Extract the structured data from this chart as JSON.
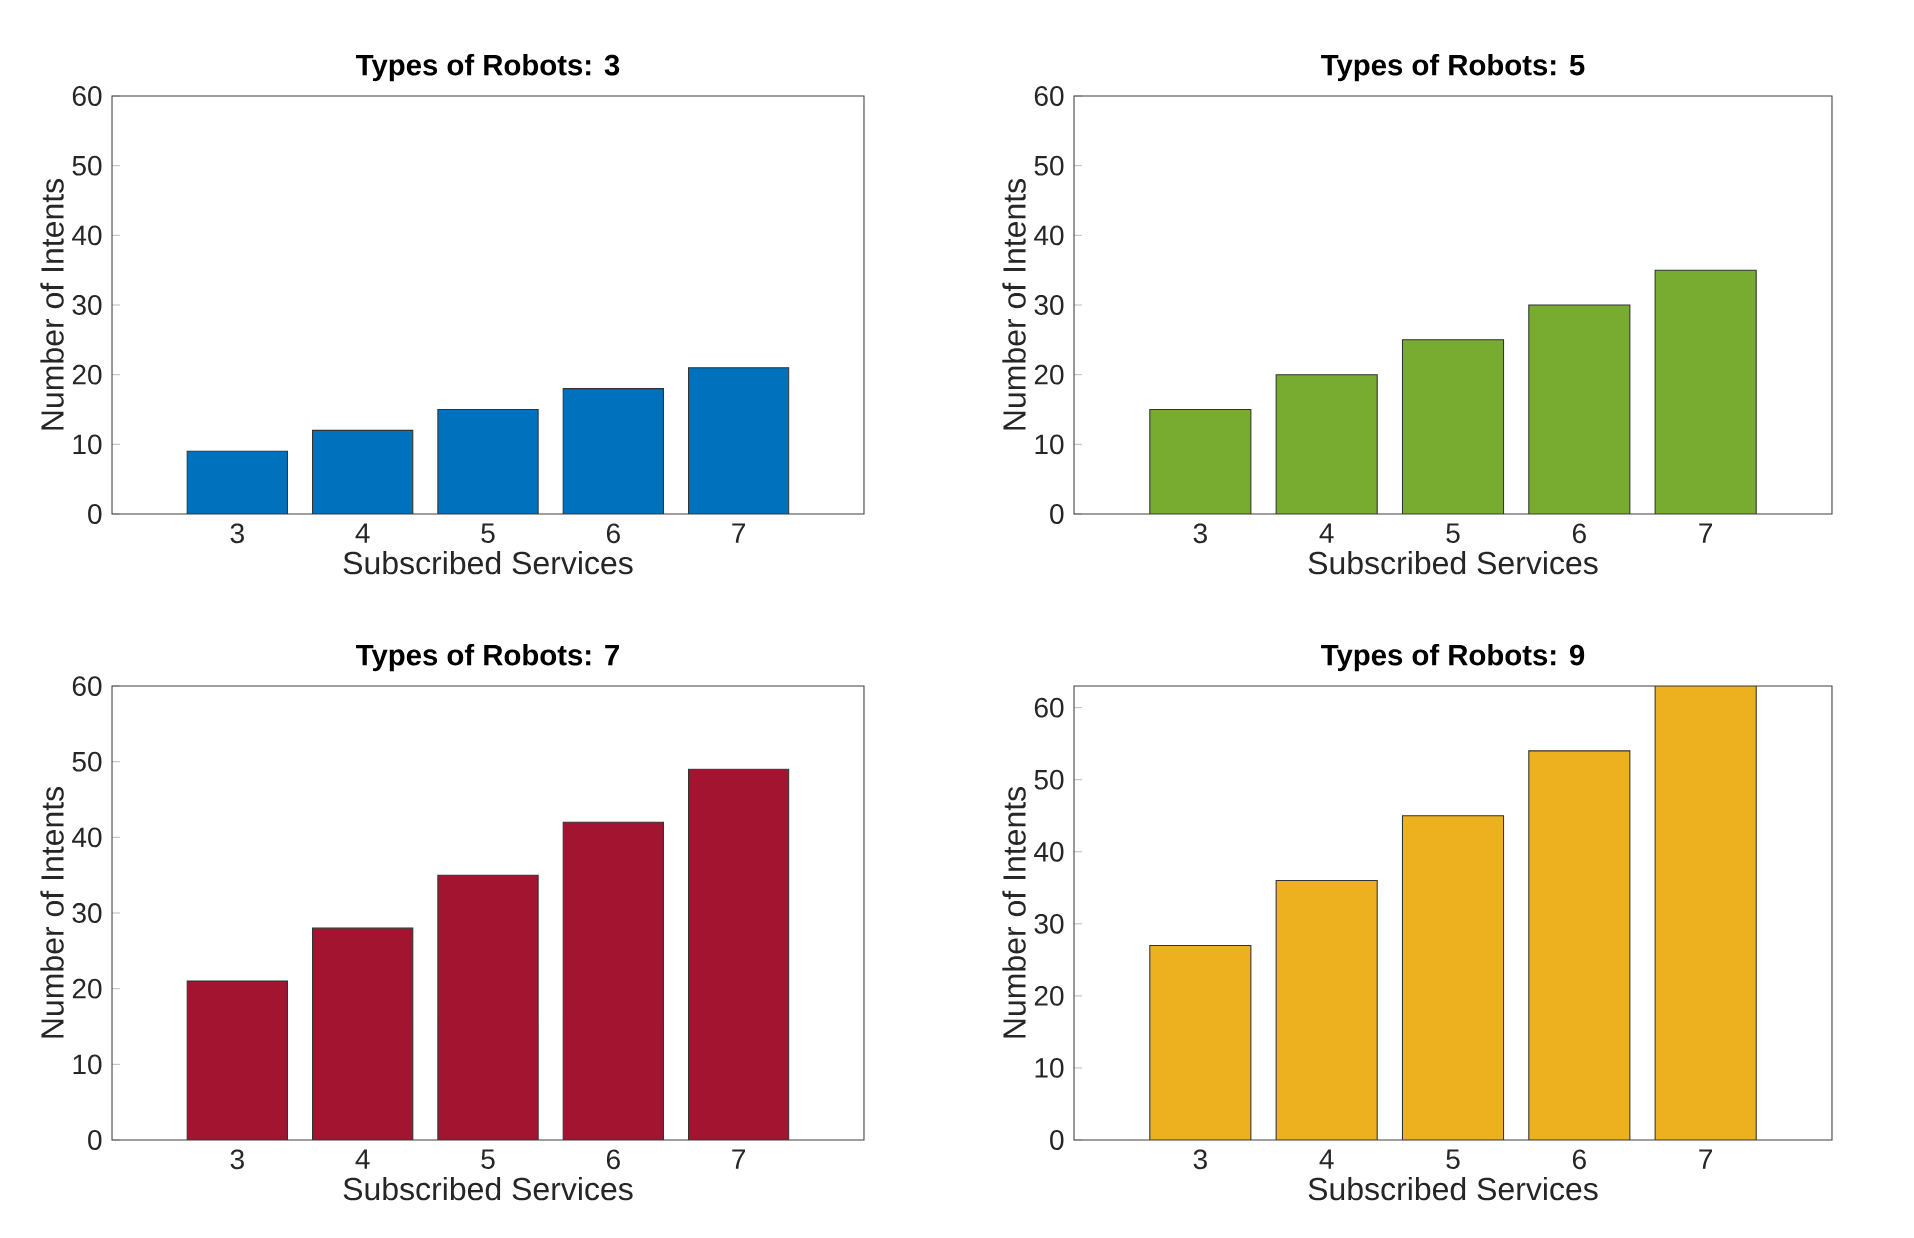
{
  "chart_data": [
    {
      "type": "bar",
      "title": "Types of Robots: 3",
      "xlabel": "Subscribed Services",
      "ylabel": "Number of Intents",
      "x": [
        3,
        4,
        5,
        6,
        7
      ],
      "values": [
        9,
        12,
        15,
        18,
        21
      ],
      "color": "#0072bd",
      "xlim": [
        2,
        8
      ],
      "xticks": [
        3,
        4,
        5,
        6,
        7
      ],
      "ylim": [
        0,
        60
      ],
      "yticks": [
        0,
        10,
        20,
        30,
        40,
        50,
        60
      ]
    },
    {
      "type": "bar",
      "title": "Types of Robots: 5",
      "xlabel": "Subscribed Services",
      "ylabel": "Number of Intents",
      "x": [
        3,
        4,
        5,
        6,
        7
      ],
      "values": [
        15,
        20,
        25,
        30,
        35
      ],
      "color": "#77ac30",
      "xlim": [
        2,
        8
      ],
      "xticks": [
        3,
        4,
        5,
        6,
        7
      ],
      "ylim": [
        0,
        60
      ],
      "yticks": [
        0,
        10,
        20,
        30,
        40,
        50,
        60
      ]
    },
    {
      "type": "bar",
      "title": "Types of Robots: 7",
      "xlabel": "Subscribed Services",
      "ylabel": "Number of Intents",
      "x": [
        3,
        4,
        5,
        6,
        7
      ],
      "values": [
        21,
        28,
        35,
        42,
        49
      ],
      "color": "#a2142f",
      "xlim": [
        2,
        8
      ],
      "xticks": [
        3,
        4,
        5,
        6,
        7
      ],
      "ylim": [
        0,
        60
      ],
      "yticks": [
        0,
        10,
        20,
        30,
        40,
        50,
        60
      ]
    },
    {
      "type": "bar",
      "title": "Types of Robots: 9",
      "xlabel": "Subscribed Services",
      "ylabel": "Number of Intents",
      "x": [
        3,
        4,
        5,
        6,
        7
      ],
      "values": [
        27,
        36,
        45,
        54,
        63
      ],
      "color": "#edb120",
      "xlim": [
        2,
        8
      ],
      "xticks": [
        3,
        4,
        5,
        6,
        7
      ],
      "ylim": [
        0,
        63
      ],
      "yticks": [
        0,
        10,
        20,
        30,
        40,
        50,
        60
      ]
    }
  ]
}
